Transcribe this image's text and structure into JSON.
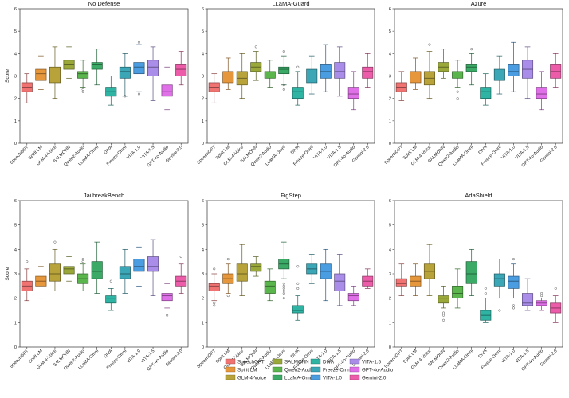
{
  "chart_data": {
    "type": "box",
    "ylabel": "Score",
    "ylim": [
      0,
      6
    ],
    "yticks": [
      0,
      1,
      2,
      3,
      4,
      5,
      6
    ],
    "categories": [
      "SpeechGPT",
      "Spirit LM",
      "GLM-4-Voice",
      "SALMONN",
      "Qwen2-Audio",
      "LLaMA-Omni",
      "DIVA",
      "Freeze-Omni",
      "VITA-1.0",
      "VITA-1.5",
      "GPT-4o-Audio",
      "Gemini-2.0"
    ],
    "colors": [
      "#f07372",
      "#e6973c",
      "#b8a33a",
      "#9aa83a",
      "#5ab54c",
      "#3aaa66",
      "#2fb3a3",
      "#3ba6b5",
      "#4a9de0",
      "#a98de8",
      "#e070e8",
      "#ec5ca8"
    ],
    "panels": [
      {
        "title": "No Defense",
        "boxes": [
          {
            "whislo": 1.8,
            "q1": 2.3,
            "med": 2.5,
            "q3": 2.7,
            "whishi": 3.1,
            "fliers": []
          },
          {
            "whislo": 2.4,
            "q1": 2.8,
            "med": 3.1,
            "q3": 3.3,
            "whishi": 3.9,
            "fliers": []
          },
          {
            "whislo": 2.0,
            "q1": 2.7,
            "med": 3.0,
            "q3": 3.4,
            "whishi": 4.3,
            "fliers": []
          },
          {
            "whislo": 2.9,
            "q1": 3.3,
            "med": 3.5,
            "q3": 3.7,
            "whishi": 4.3,
            "fliers": []
          },
          {
            "whislo": 2.5,
            "q1": 2.9,
            "med": 3.1,
            "q3": 3.2,
            "whishi": 3.7,
            "fliers": [
              2.4,
              2.3
            ]
          },
          {
            "whislo": 2.6,
            "q1": 3.3,
            "med": 3.5,
            "q3": 3.6,
            "whishi": 4.2,
            "fliers": []
          },
          {
            "whislo": 1.7,
            "q1": 2.1,
            "med": 2.3,
            "q3": 2.5,
            "whishi": 3.0,
            "fliers": []
          },
          {
            "whislo": 2.1,
            "q1": 2.9,
            "med": 3.2,
            "q3": 3.4,
            "whishi": 4.0,
            "fliers": [
              2.1
            ]
          },
          {
            "whislo": 2.3,
            "q1": 3.1,
            "med": 3.4,
            "q3": 3.6,
            "whishi": 4.4,
            "fliers": [
              4.5,
              2.2
            ]
          },
          {
            "whislo": 1.9,
            "q1": 3.0,
            "med": 3.4,
            "q3": 3.7,
            "whishi": 4.3,
            "fliers": []
          },
          {
            "whislo": 1.5,
            "q1": 2.1,
            "med": 2.3,
            "q3": 2.6,
            "whishi": 3.4,
            "fliers": []
          },
          {
            "whislo": 2.6,
            "q1": 3.0,
            "med": 3.3,
            "q3": 3.5,
            "whishi": 4.1,
            "fliers": []
          }
        ]
      },
      {
        "title": "LLaMA-Guard",
        "boxes": [
          {
            "whislo": 1.8,
            "q1": 2.3,
            "med": 2.5,
            "q3": 2.7,
            "whishi": 3.1,
            "fliers": []
          },
          {
            "whislo": 2.4,
            "q1": 2.7,
            "med": 3.0,
            "q3": 3.2,
            "whishi": 3.8,
            "fliers": []
          },
          {
            "whislo": 2.0,
            "q1": 2.6,
            "med": 2.9,
            "q3": 3.2,
            "whishi": 4.0,
            "fliers": []
          },
          {
            "whislo": 2.8,
            "q1": 3.2,
            "med": 3.4,
            "q3": 3.6,
            "whishi": 4.1,
            "fliers": [
              4.3
            ]
          },
          {
            "whislo": 2.5,
            "q1": 2.9,
            "med": 3.0,
            "q3": 3.2,
            "whishi": 3.7,
            "fliers": []
          },
          {
            "whislo": 2.6,
            "q1": 3.1,
            "med": 3.3,
            "q3": 3.4,
            "whishi": 3.9,
            "fliers": [
              4.1,
              2.6,
              2.4
            ]
          },
          {
            "whislo": 1.7,
            "q1": 2.0,
            "med": 2.3,
            "q3": 2.5,
            "whishi": 3.2,
            "fliers": [
              3.4
            ]
          },
          {
            "whislo": 2.2,
            "q1": 2.7,
            "med": 3.0,
            "q3": 3.3,
            "whishi": 3.9,
            "fliers": []
          },
          {
            "whislo": 2.3,
            "q1": 2.9,
            "med": 3.2,
            "q3": 3.5,
            "whishi": 4.4,
            "fliers": []
          },
          {
            "whislo": 2.1,
            "q1": 2.9,
            "med": 3.2,
            "q3": 3.6,
            "whishi": 4.3,
            "fliers": []
          },
          {
            "whislo": 1.5,
            "q1": 2.0,
            "med": 2.2,
            "q3": 2.5,
            "whishi": 3.2,
            "fliers": []
          },
          {
            "whislo": 2.5,
            "q1": 2.9,
            "med": 3.2,
            "q3": 3.4,
            "whishi": 4.0,
            "fliers": []
          }
        ]
      },
      {
        "title": "Azure",
        "boxes": [
          {
            "whislo": 1.9,
            "q1": 2.3,
            "med": 2.5,
            "q3": 2.7,
            "whishi": 3.2,
            "fliers": []
          },
          {
            "whislo": 2.4,
            "q1": 2.7,
            "med": 3.0,
            "q3": 3.2,
            "whishi": 3.8,
            "fliers": []
          },
          {
            "whislo": 2.0,
            "q1": 2.6,
            "med": 2.9,
            "q3": 3.2,
            "whishi": 4.1,
            "fliers": [
              4.4
            ]
          },
          {
            "whislo": 2.9,
            "q1": 3.2,
            "med": 3.4,
            "q3": 3.6,
            "whishi": 4.2,
            "fliers": []
          },
          {
            "whislo": 2.5,
            "q1": 2.9,
            "med": 3.0,
            "q3": 3.2,
            "whishi": 3.7,
            "fliers": [
              2.3,
              2.0
            ]
          },
          {
            "whislo": 2.6,
            "q1": 3.2,
            "med": 3.4,
            "q3": 3.5,
            "whishi": 4.0,
            "fliers": [
              4.2
            ]
          },
          {
            "whislo": 1.7,
            "q1": 2.0,
            "med": 2.3,
            "q3": 2.5,
            "whishi": 3.1,
            "fliers": []
          },
          {
            "whislo": 2.2,
            "q1": 2.8,
            "med": 3.0,
            "q3": 3.3,
            "whishi": 3.9,
            "fliers": []
          },
          {
            "whislo": 2.3,
            "q1": 3.0,
            "med": 3.2,
            "q3": 3.5,
            "whishi": 4.5,
            "fliers": []
          },
          {
            "whislo": 2.0,
            "q1": 2.9,
            "med": 3.3,
            "q3": 3.7,
            "whishi": 4.3,
            "fliers": []
          },
          {
            "whislo": 1.5,
            "q1": 2.0,
            "med": 2.2,
            "q3": 2.5,
            "whishi": 3.2,
            "fliers": []
          },
          {
            "whislo": 2.5,
            "q1": 2.9,
            "med": 3.2,
            "q3": 3.5,
            "whishi": 4.0,
            "fliers": []
          }
        ]
      },
      {
        "title": "JailbreakBench",
        "boxes": [
          {
            "whislo": 1.9,
            "q1": 2.3,
            "med": 2.5,
            "q3": 2.7,
            "whishi": 3.2,
            "fliers": [
              3.5
            ]
          },
          {
            "whislo": 2.0,
            "q1": 2.5,
            "med": 2.7,
            "q3": 2.9,
            "whishi": 3.3,
            "fliers": []
          },
          {
            "whislo": 2.3,
            "q1": 2.7,
            "med": 3.0,
            "q3": 3.4,
            "whishi": 4.0,
            "fliers": [
              4.3
            ]
          },
          {
            "whislo": 2.7,
            "q1": 3.0,
            "med": 3.2,
            "q3": 3.3,
            "whishi": 3.7,
            "fliers": []
          },
          {
            "whislo": 2.3,
            "q1": 2.6,
            "med": 2.8,
            "q3": 3.0,
            "whishi": 3.4,
            "fliers": [
              3.6,
              3.5
            ]
          },
          {
            "whislo": 2.2,
            "q1": 2.8,
            "med": 3.1,
            "q3": 3.5,
            "whishi": 4.3,
            "fliers": []
          },
          {
            "whislo": 1.5,
            "q1": 1.8,
            "med": 2.0,
            "q3": 2.1,
            "whishi": 2.4,
            "fliers": [
              2.7
            ]
          },
          {
            "whislo": 2.2,
            "q1": 2.8,
            "med": 3.0,
            "q3": 3.3,
            "whishi": 4.0,
            "fliers": []
          },
          {
            "whislo": 2.5,
            "q1": 3.1,
            "med": 3.3,
            "q3": 3.6,
            "whishi": 4.1,
            "fliers": []
          },
          {
            "whislo": 2.1,
            "q1": 3.1,
            "med": 3.3,
            "q3": 3.7,
            "whishi": 4.4,
            "fliers": []
          },
          {
            "whislo": 1.6,
            "q1": 1.9,
            "med": 2.1,
            "q3": 2.2,
            "whishi": 2.6,
            "fliers": [
              1.3
            ]
          },
          {
            "whislo": 2.2,
            "q1": 2.5,
            "med": 2.7,
            "q3": 2.9,
            "whishi": 3.4,
            "fliers": [
              3.7
            ]
          }
        ]
      },
      {
        "title": "FigStep",
        "boxes": [
          {
            "whislo": 1.9,
            "q1": 2.3,
            "med": 2.5,
            "q3": 2.6,
            "whishi": 3.0,
            "fliers": [
              3.2,
              1.8,
              1.7
            ]
          },
          {
            "whislo": 2.2,
            "q1": 2.6,
            "med": 2.8,
            "q3": 3.0,
            "whishi": 3.4,
            "fliers": [
              3.6,
              2.1
            ]
          },
          {
            "whislo": 2.1,
            "q1": 2.7,
            "med": 3.0,
            "q3": 3.4,
            "whishi": 4.2,
            "fliers": []
          },
          {
            "whislo": 2.9,
            "q1": 3.1,
            "med": 3.3,
            "q3": 3.4,
            "whishi": 3.7,
            "fliers": []
          },
          {
            "whislo": 1.9,
            "q1": 2.2,
            "med": 2.5,
            "q3": 2.7,
            "whishi": 3.2,
            "fliers": []
          },
          {
            "whislo": 2.8,
            "q1": 3.2,
            "med": 3.4,
            "q3": 3.6,
            "whishi": 4.3,
            "fliers": [
              2.6,
              2.5,
              2.4,
              2.3,
              2.2,
              2.0
            ]
          },
          {
            "whislo": 1.1,
            "q1": 1.4,
            "med": 1.5,
            "q3": 1.7,
            "whishi": 2.1,
            "fliers": [
              2.4,
              2.6,
              3.3
            ]
          },
          {
            "whislo": 2.6,
            "q1": 3.0,
            "med": 3.2,
            "q3": 3.4,
            "whishi": 3.8,
            "fliers": []
          },
          {
            "whislo": 1.9,
            "q1": 2.8,
            "med": 3.1,
            "q3": 3.4,
            "whishi": 4.0,
            "fliers": []
          },
          {
            "whislo": 1.7,
            "q1": 2.3,
            "med": 2.7,
            "q3": 3.0,
            "whishi": 3.8,
            "fliers": []
          },
          {
            "whislo": 1.7,
            "q1": 1.9,
            "med": 2.1,
            "q3": 2.2,
            "whishi": 2.5,
            "fliers": []
          },
          {
            "whislo": 2.4,
            "q1": 2.5,
            "med": 2.7,
            "q3": 2.9,
            "whishi": 3.2,
            "fliers": []
          }
        ]
      },
      {
        "title": "AdaShield",
        "boxes": [
          {
            "whislo": 2.1,
            "q1": 2.5,
            "med": 2.6,
            "q3": 2.8,
            "whishi": 3.4,
            "fliers": []
          },
          {
            "whislo": 2.1,
            "q1": 2.5,
            "med": 2.7,
            "q3": 2.9,
            "whishi": 3.4,
            "fliers": []
          },
          {
            "whislo": 2.1,
            "q1": 2.8,
            "med": 3.1,
            "q3": 3.4,
            "whishi": 4.2,
            "fliers": []
          },
          {
            "whislo": 1.6,
            "q1": 1.8,
            "med": 2.0,
            "q3": 2.1,
            "whishi": 2.5,
            "fliers": [
              1.4,
              1.3,
              1.1
            ]
          },
          {
            "whislo": 1.6,
            "q1": 2.0,
            "med": 2.2,
            "q3": 2.5,
            "whishi": 3.2,
            "fliers": []
          },
          {
            "whislo": 2.1,
            "q1": 2.6,
            "med": 3.0,
            "q3": 3.5,
            "whishi": 4.0,
            "fliers": []
          },
          {
            "whislo": 1.0,
            "q1": 1.1,
            "med": 1.3,
            "q3": 1.5,
            "whishi": 2.0,
            "fliers": [
              2.2,
              2.4
            ]
          },
          {
            "whislo": 2.0,
            "q1": 2.5,
            "med": 2.8,
            "q3": 3.0,
            "whishi": 3.6,
            "fliers": [
              1.5
            ]
          },
          {
            "whislo": 2.0,
            "q1": 2.4,
            "med": 2.7,
            "q3": 2.9,
            "whishi": 3.4,
            "fliers": [
              3.6,
              1.7,
              1.6
            ]
          },
          {
            "whislo": 1.5,
            "q1": 1.7,
            "med": 1.8,
            "q3": 2.2,
            "whishi": 2.8,
            "fliers": []
          },
          {
            "whislo": 1.5,
            "q1": 1.7,
            "med": 1.8,
            "q3": 1.9,
            "whishi": 2.0,
            "fliers": [
              2.1,
              2.2
            ]
          },
          {
            "whislo": 1.0,
            "q1": 1.4,
            "med": 1.6,
            "q3": 1.8,
            "whishi": 2.1,
            "fliers": [
              2.4
            ]
          }
        ]
      }
    ],
    "legend": {
      "placement": "bottom-center",
      "entries": [
        "SpeechGPT",
        "Spirit LM",
        "GLM-4-Voice",
        "SALMONN",
        "Qwen2-Audio",
        "LLaMA-Omni",
        "DIVA",
        "Freeze-Omni",
        "VITA-1.0",
        "VITA-1.5",
        "GPT-4o-Audio",
        "Gemini-2.0"
      ]
    }
  }
}
